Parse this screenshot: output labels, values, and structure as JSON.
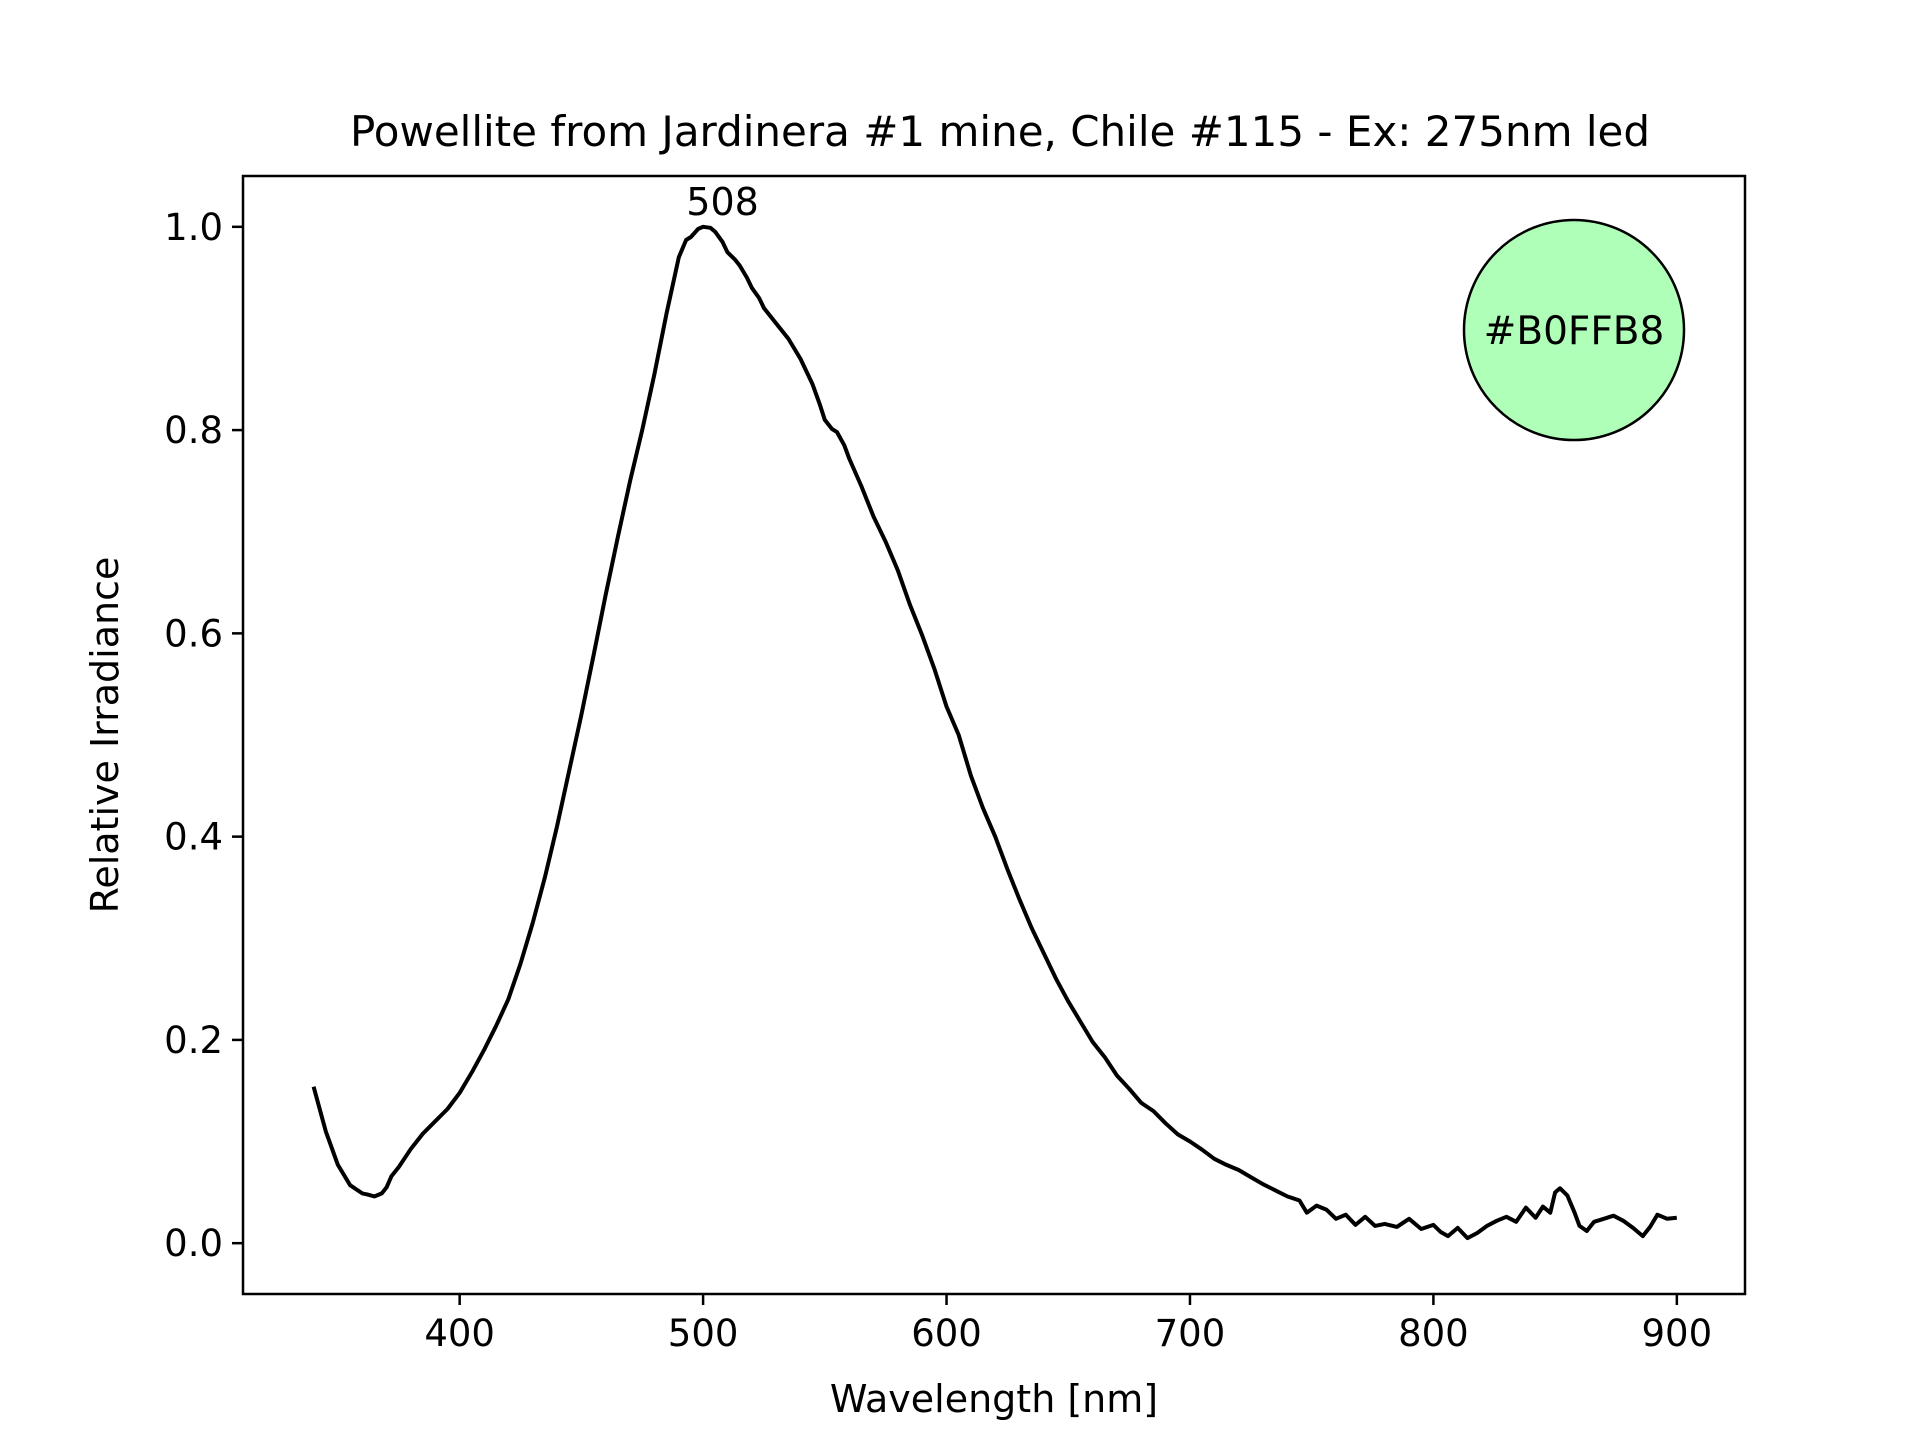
{
  "chart_data": {
    "type": "line",
    "title": "Powellite from Jardinera #1 mine, Chile #115 - Ex: 275nm led",
    "xlabel": "Wavelength [nm]",
    "ylabel": "Relative Irradiance",
    "xlim": [
      311,
      928
    ],
    "ylim": [
      -0.05,
      1.05
    ],
    "xticks": [
      400,
      500,
      600,
      700,
      800,
      900
    ],
    "xtick_labels": [
      "400",
      "500",
      "600",
      "700",
      "800",
      "900"
    ],
    "yticks": [
      0.0,
      0.2,
      0.4,
      0.6,
      0.8,
      1.0
    ],
    "ytick_labels": [
      "0.0",
      "0.2",
      "0.4",
      "0.6",
      "0.8",
      "1.0"
    ],
    "grid": false,
    "line_color": "#000000",
    "series": [
      {
        "x": [
          340,
          345,
          350,
          355,
          360,
          362,
          365,
          368,
          370,
          372,
          375,
          380,
          385,
          390,
          395,
          400,
          405,
          410,
          415,
          420,
          425,
          430,
          435,
          440,
          445,
          450,
          455,
          460,
          465,
          470,
          475,
          480,
          485,
          490,
          493,
          495,
          498,
          500,
          503,
          505,
          508,
          510,
          513,
          515,
          518,
          520,
          523,
          525,
          530,
          535,
          540,
          545,
          548,
          550,
          553,
          555,
          558,
          560,
          565,
          570,
          575,
          580,
          585,
          590,
          595,
          600,
          605,
          610,
          615,
          620,
          625,
          630,
          635,
          640,
          645,
          650,
          655,
          660,
          665,
          670,
          675,
          680,
          685,
          690,
          695,
          700,
          705,
          710,
          715,
          720,
          725,
          730,
          735,
          740,
          745,
          748,
          752,
          756,
          760,
          764,
          768,
          772,
          776,
          780,
          785,
          790,
          795,
          800,
          803,
          806,
          810,
          814,
          818,
          822,
          826,
          830,
          834,
          838,
          842,
          845,
          848,
          850,
          852,
          855,
          858,
          860,
          863,
          866,
          870,
          874,
          878,
          882,
          886,
          889,
          892,
          896,
          900
        ],
        "y": [
          0.154,
          0.11,
          0.077,
          0.057,
          0.049,
          0.048,
          0.046,
          0.049,
          0.055,
          0.066,
          0.075,
          0.093,
          0.108,
          0.12,
          0.132,
          0.148,
          0.168,
          0.19,
          0.214,
          0.24,
          0.275,
          0.315,
          0.36,
          0.41,
          0.465,
          0.52,
          0.578,
          0.638,
          0.695,
          0.75,
          0.8,
          0.855,
          0.915,
          0.97,
          0.987,
          0.99,
          0.998,
          1.0,
          0.999,
          0.995,
          0.985,
          0.975,
          0.968,
          0.962,
          0.95,
          0.94,
          0.93,
          0.92,
          0.905,
          0.89,
          0.87,
          0.845,
          0.825,
          0.81,
          0.801,
          0.798,
          0.785,
          0.772,
          0.745,
          0.715,
          0.69,
          0.662,
          0.628,
          0.598,
          0.565,
          0.528,
          0.5,
          0.46,
          0.428,
          0.4,
          0.368,
          0.338,
          0.31,
          0.285,
          0.26,
          0.238,
          0.218,
          0.198,
          0.183,
          0.165,
          0.152,
          0.138,
          0.13,
          0.118,
          0.107,
          0.1,
          0.092,
          0.083,
          0.077,
          0.072,
          0.065,
          0.058,
          0.052,
          0.046,
          0.042,
          0.03,
          0.037,
          0.033,
          0.024,
          0.028,
          0.018,
          0.026,
          0.017,
          0.019,
          0.016,
          0.024,
          0.014,
          0.018,
          0.011,
          0.007,
          0.015,
          0.005,
          0.01,
          0.017,
          0.022,
          0.026,
          0.021,
          0.035,
          0.025,
          0.036,
          0.03,
          0.05,
          0.054,
          0.047,
          0.03,
          0.017,
          0.012,
          0.021,
          0.024,
          0.027,
          0.022,
          0.015,
          0.007,
          0.016,
          0.028,
          0.024,
          0.025
        ]
      }
    ],
    "annotations": [
      {
        "x": 508,
        "y": 1.0,
        "text": "508"
      }
    ],
    "color_swatch": {
      "text": "#B0FFB8",
      "fill": "#B0FFB8",
      "position": "top-right"
    }
  }
}
